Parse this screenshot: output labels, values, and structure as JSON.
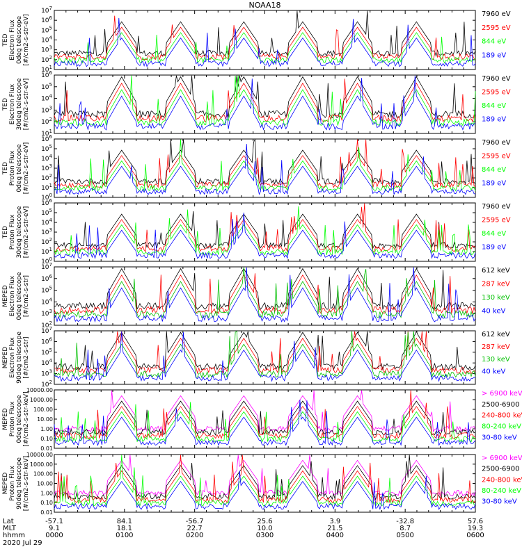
{
  "chart_data": {
    "type": "line",
    "title": "NOAA18",
    "date": "2020 Jul 29",
    "footer_labels": [
      "Lat",
      "MLT",
      "hhmm"
    ],
    "time_axis": {
      "ticks": [
        {
          "lat": "-57.1",
          "mlt": "9.1",
          "hhmm": "0000"
        },
        {
          "lat": "84.1",
          "mlt": "18.1",
          "hhmm": "0100"
        },
        {
          "lat": "-56.7",
          "mlt": "22.7",
          "hhmm": "0200"
        },
        {
          "lat": "25.6",
          "mlt": "10.0",
          "hhmm": "0300"
        },
        {
          "lat": "3.9",
          "mlt": "21.5",
          "hhmm": "0400"
        },
        {
          "lat": "-32.8",
          "mlt": "8.7",
          "hhmm": "0500"
        },
        {
          "lat": "57.6",
          "mlt": "19.3",
          "hhmm": "0600"
        }
      ]
    },
    "panels": [
      {
        "ylabel": [
          "TED",
          "Electron Flux",
          "0deg telescope",
          "[#/cm2-s-str-eV]"
        ],
        "scale": "log",
        "ylim_exp": [
          1,
          7
        ],
        "tick_labels": [
          "10^1",
          "10^2",
          "10^3",
          "10^4",
          "10^5",
          "10^6",
          "10^7"
        ],
        "series": [
          {
            "name": "7960 eV",
            "color": "#000000"
          },
          {
            "name": "2595 eV",
            "color": "#ff0000"
          },
          {
            "name": "844 eV",
            "color": "#00ff00"
          },
          {
            "name": "189 eV",
            "color": "#0000ff"
          }
        ]
      },
      {
        "ylabel": [
          "TED",
          "Electron Flux",
          "30deg telescope",
          "[#/cm2-s-str-eV]"
        ],
        "scale": "log",
        "ylim_exp": [
          1,
          6
        ],
        "tick_labels": [
          "10^1",
          "10^2",
          "10^3",
          "10^4",
          "10^5",
          "10^6"
        ],
        "series": [
          {
            "name": "7960 eV",
            "color": "#000000"
          },
          {
            "name": "2595 eV",
            "color": "#ff0000"
          },
          {
            "name": "844 eV",
            "color": "#00ff00"
          },
          {
            "name": "189 eV",
            "color": "#0000ff"
          }
        ]
      },
      {
        "ylabel": [
          "TED",
          "Proton Flux",
          "0deg telescope",
          "[#/cm2-s-str-eV]"
        ],
        "scale": "log",
        "ylim_exp": [
          0,
          6
        ],
        "tick_labels": [
          "10^0",
          "10^1",
          "10^2",
          "10^3",
          "10^4",
          "10^5",
          "10^6"
        ],
        "series": [
          {
            "name": "7960 eV",
            "color": "#000000"
          },
          {
            "name": "2595 eV",
            "color": "#ff0000"
          },
          {
            "name": "844 eV",
            "color": "#00ff00"
          },
          {
            "name": "189 eV",
            "color": "#0000ff"
          }
        ]
      },
      {
        "ylabel": [
          "TED",
          "Proton Flux",
          "30deg telescope",
          "[#/cm2-s-str-eV]"
        ],
        "scale": "log",
        "ylim_exp": [
          0,
          6
        ],
        "tick_labels": [
          "10^0",
          "10^1",
          "10^2",
          "10^3",
          "10^4",
          "10^5",
          "10^6"
        ],
        "series": [
          {
            "name": "7960 eV",
            "color": "#000000"
          },
          {
            "name": "2595 eV",
            "color": "#ff0000"
          },
          {
            "name": "844 eV",
            "color": "#00ff00"
          },
          {
            "name": "189 eV",
            "color": "#0000ff"
          }
        ]
      },
      {
        "ylabel": [
          "MEPED",
          "Electron Flux",
          "0deg telescope",
          "[#/cm2-s-str]"
        ],
        "scale": "log",
        "ylim_exp": [
          2,
          7
        ],
        "tick_labels": [
          "10^2",
          "10^3",
          "10^4",
          "10^5",
          "10^6",
          "10^7"
        ],
        "series": [
          {
            "name": "612 keV",
            "color": "#000000"
          },
          {
            "name": "287 keV",
            "color": "#ff0000"
          },
          {
            "name": "130 keV",
            "color": "#00c000"
          },
          {
            "name": "40 keV",
            "color": "#0000ff"
          }
        ]
      },
      {
        "ylabel": [
          "MEPED",
          "Electron Flux",
          "90deg telescope",
          "[#/cm2-s-str]"
        ],
        "scale": "log",
        "ylim_exp": [
          2,
          7
        ],
        "tick_labels": [
          "10^2",
          "10^3",
          "10^4",
          "10^5",
          "10^6",
          "10^7"
        ],
        "series": [
          {
            "name": "612 keV",
            "color": "#000000"
          },
          {
            "name": "287 keV",
            "color": "#ff0000"
          },
          {
            "name": "130 keV",
            "color": "#00c000"
          },
          {
            "name": "40 keV",
            "color": "#0000ff"
          }
        ]
      },
      {
        "ylabel": [
          "MEPED",
          "Proton Flux",
          "0deg telescope",
          "[#/cm2-s-str-keV]"
        ],
        "scale": "log",
        "ylim_exp": [
          -2,
          4
        ],
        "tick_labels": [
          "0.01",
          "0.10",
          "1.00",
          "10.00",
          "100.00",
          "1000.00",
          "10000.00"
        ],
        "series": [
          {
            "name": "> 6900 keV",
            "color": "#ff00ff"
          },
          {
            "name": "2500-6900",
            "color": "#000000"
          },
          {
            "name": "240-800 keV",
            "color": "#ff0000"
          },
          {
            "name": "80-240 keV",
            "color": "#00ff00"
          },
          {
            "name": "30-80 keV",
            "color": "#0000ff"
          }
        ]
      },
      {
        "ylabel": [
          "MEPED",
          "Proton Flux",
          "90deg telescope",
          "[#/cm2-s-str-keV]"
        ],
        "scale": "log",
        "ylim_exp": [
          -2,
          4
        ],
        "tick_labels": [
          "0.01",
          "0.10",
          "1.00",
          "10.00",
          "100.00",
          "1000.00",
          "10000.00"
        ],
        "series": [
          {
            "name": "> 6900 keV",
            "color": "#ff00ff"
          },
          {
            "name": "2500-6900",
            "color": "#000000"
          },
          {
            "name": "240-800 keV",
            "color": "#ff0000"
          },
          {
            "name": "80-240 keV",
            "color": "#00ff00"
          },
          {
            "name": "30-80 keV",
            "color": "#0000ff"
          }
        ]
      }
    ]
  }
}
